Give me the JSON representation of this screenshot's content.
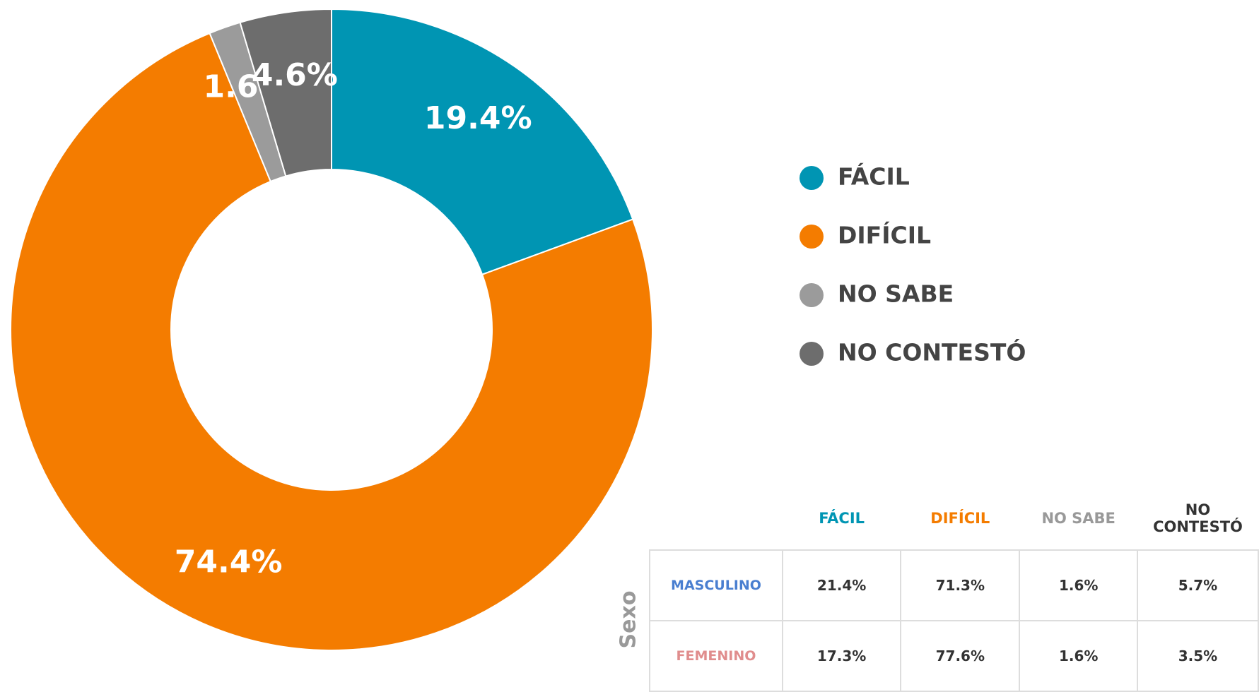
{
  "chart_data": {
    "type": "donut",
    "categories": [
      "FÁCIL",
      "DIFÍCIL",
      "NO SABE",
      "NO CONTESTÓ"
    ],
    "values": [
      19.4,
      74.4,
      1.6,
      4.6
    ],
    "value_labels": [
      "19.4%",
      "74.4%",
      "1.6%",
      "4.6%"
    ],
    "colors": [
      "#0095b3",
      "#f47c00",
      "#9b9b9b",
      "#6d6d6d"
    ],
    "legend": "right"
  },
  "table": {
    "row_header": "Sexo",
    "columns": [
      "FÁCIL",
      "DIFÍCIL",
      "NO SABE",
      "NO CONTESTÓ"
    ],
    "rows": [
      [
        "MASCULINO",
        "21.4%",
        "71.3%",
        "1.6%",
        "5.7%"
      ],
      [
        "FEMENINO",
        "17.3%",
        "77.6%",
        "1.6%",
        "3.5%"
      ]
    ]
  }
}
